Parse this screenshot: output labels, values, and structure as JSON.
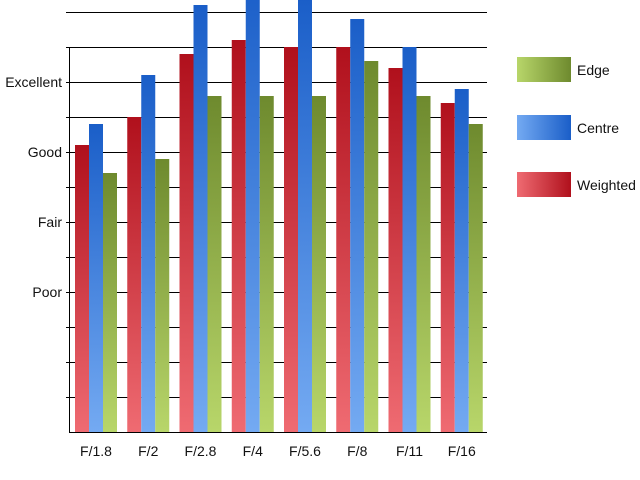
{
  "chart_data": {
    "type": "bar",
    "categories": [
      "F/1.8",
      "F/2",
      "F/2.8",
      "F/4",
      "F/5.6",
      "F/8",
      "F/11",
      "F/16"
    ],
    "series": [
      {
        "name": "Weighted",
        "values": [
          3.1,
          3.5,
          4.4,
          4.6,
          4.5,
          4.5,
          4.2,
          3.7
        ]
      },
      {
        "name": "Centre",
        "values": [
          3.4,
          4.1,
          5.1,
          5.4,
          5.2,
          4.9,
          4.5,
          3.9
        ]
      },
      {
        "name": "Edge",
        "values": [
          2.7,
          2.9,
          3.8,
          3.8,
          3.8,
          4.3,
          3.8,
          3.4
        ]
      }
    ],
    "y_tick_labels": [
      {
        "value": 1,
        "label": "Poor"
      },
      {
        "value": 2,
        "label": "Fair"
      },
      {
        "value": 3,
        "label": "Good"
      },
      {
        "value": 4,
        "label": "Excellent"
      }
    ],
    "ylim": [
      -1,
      5
    ],
    "grid": true,
    "legend_position": "right",
    "legend_order": [
      "Edge",
      "Centre",
      "Weighted"
    ],
    "colors": {
      "Weighted": {
        "light": "#ef6b72",
        "dark": "#b0101c"
      },
      "Centre": {
        "light": "#74aaf2",
        "dark": "#1a5ec8"
      },
      "Edge": {
        "light": "#b8d66a",
        "dark": "#6e8a2e"
      }
    },
    "title": "",
    "xlabel": "",
    "ylabel": ""
  }
}
